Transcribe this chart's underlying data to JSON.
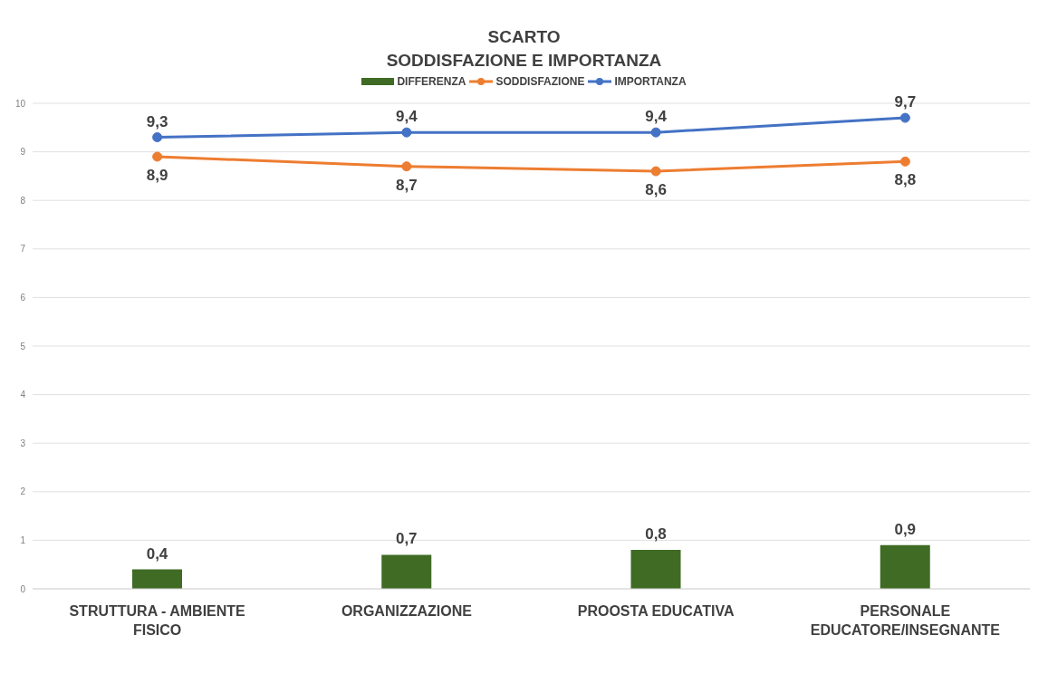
{
  "chart_data": {
    "type": "line",
    "title": "SCARTO\nSODDISFAZIONE E IMPORTANZA",
    "categories": [
      "STRUTTURA - AMBIENTE FISICO",
      "ORGANIZZAZIONE",
      "PROOSTA EDUCATIVA",
      "PERSONALE EDUCATORE/INSEGNANTE"
    ],
    "series": [
      {
        "name": "DIFFERENZA",
        "type": "bar",
        "color": "#3f6b24",
        "values": [
          0.4,
          0.7,
          0.8,
          0.9
        ],
        "value_labels": [
          "0,4",
          "0,7",
          "0,8",
          "0,9"
        ]
      },
      {
        "name": "SODDISFAZIONE",
        "color": "#ed7d31",
        "values": [
          8.9,
          8.7,
          8.6,
          8.8
        ],
        "value_labels": [
          "8,9",
          "8,7",
          "8,6",
          "8,8"
        ]
      },
      {
        "name": "IMPORTANZA",
        "color": "#4472c4",
        "values": [
          9.3,
          9.4,
          9.4,
          9.7
        ],
        "value_labels": [
          "9,3",
          "9,4",
          "9,4",
          "9,7"
        ]
      }
    ],
    "ylim": [
      0,
      10
    ],
    "yticks": [
      0,
      1,
      2,
      3,
      4,
      5,
      6,
      7,
      8,
      9,
      10
    ],
    "grid": "y",
    "legend": "top",
    "marker": "circle"
  }
}
